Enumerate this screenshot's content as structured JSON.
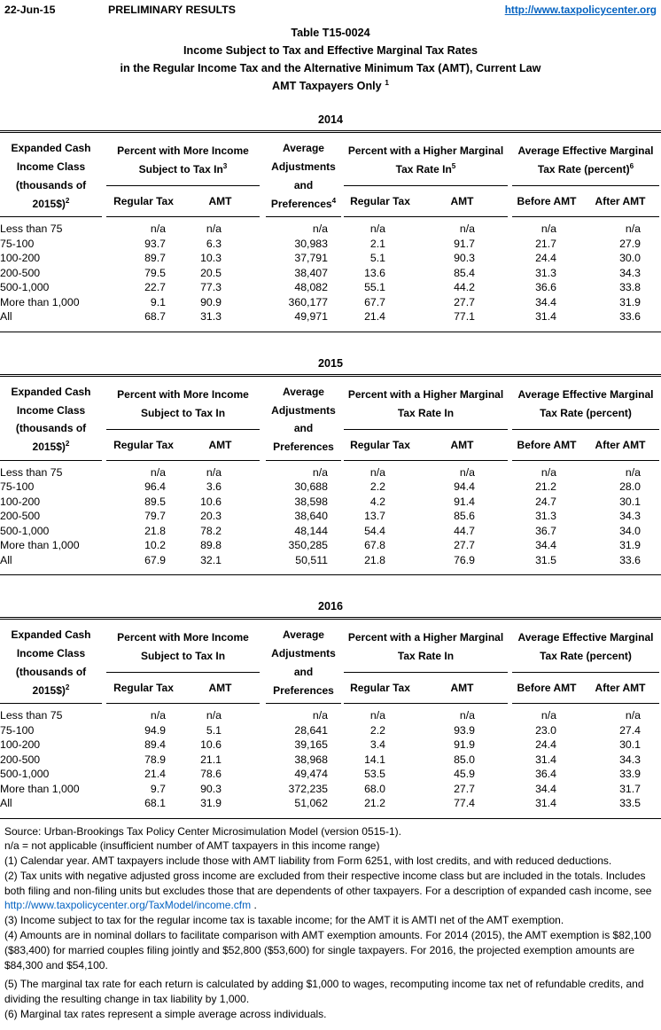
{
  "colors": {
    "link": "#0563C1",
    "text": "#000000",
    "rule": "#000000"
  },
  "header": {
    "date": "22-Jun-15",
    "status": "PRELIMINARY RESULTS",
    "url": "http://www.taxpolicycenter.org"
  },
  "title": {
    "line1": "Table T15-0024",
    "line2": "Income Subject to Tax and Effective Marginal Tax Rates",
    "line3": "in the Regular Income Tax and the Alternative Minimum Tax (AMT), Current Law",
    "line4": "AMT Taxpayers Only ",
    "line4_sup": "1"
  },
  "tables": [
    {
      "year": "2014",
      "income_class_header": {
        "lines": [
          "Expanded Cash",
          "Income Class",
          "(thousands of"
        ],
        "last": "2015$)",
        "sup": "2"
      },
      "group_subject": {
        "line1": "Percent with More Income",
        "line2": "Subject to Tax In",
        "sup": "3"
      },
      "avg_header": {
        "lines": [
          "Average",
          "Adjustments",
          "and"
        ],
        "last": "Preferences",
        "sup": "4"
      },
      "group_higher": {
        "line1": "Percent with a Higher Marginal",
        "line2": "Tax Rate In",
        "sup": "5"
      },
      "group_effective": {
        "line1": "Average Effective Marginal",
        "line2": "Tax Rate (percent)",
        "sup": "6"
      },
      "sub_headers": [
        "Regular Tax",
        "AMT",
        "Regular Tax",
        "AMT",
        "Before AMT",
        "After AMT"
      ],
      "rows": [
        [
          "Less than 75",
          "n/a",
          "n/a",
          "n/a",
          "n/a",
          "n/a",
          "n/a",
          "n/a"
        ],
        [
          "75-100",
          "93.7",
          "6.3",
          "30,983",
          "2.1",
          "91.7",
          "21.7",
          "27.9"
        ],
        [
          "100-200",
          "89.7",
          "10.3",
          "37,791",
          "5.1",
          "90.3",
          "24.4",
          "30.0"
        ],
        [
          "200-500",
          "79.5",
          "20.5",
          "38,407",
          "13.6",
          "85.4",
          "31.3",
          "34.3"
        ],
        [
          "500-1,000",
          "22.7",
          "77.3",
          "48,082",
          "55.1",
          "44.2",
          "36.6",
          "33.8"
        ],
        [
          "More than 1,000",
          "9.1",
          "90.9",
          "360,177",
          "67.7",
          "27.7",
          "34.4",
          "31.9"
        ],
        [
          "All",
          "68.7",
          "31.3",
          "49,971",
          "21.4",
          "77.1",
          "31.4",
          "33.6"
        ]
      ]
    },
    {
      "year": "2015",
      "income_class_header": {
        "lines": [
          "Expanded Cash",
          "Income Class",
          "(thousands of"
        ],
        "last": "2015$)",
        "sup": "2"
      },
      "group_subject": {
        "line1": "Percent with More Income",
        "line2": "Subject to Tax In",
        "sup": ""
      },
      "avg_header": {
        "lines": [
          "Average",
          "Adjustments",
          "and"
        ],
        "last": "Preferences",
        "sup": ""
      },
      "group_higher": {
        "line1": "Percent with a Higher Marginal",
        "line2": "Tax Rate In",
        "sup": ""
      },
      "group_effective": {
        "line1": "Average Effective Marginal",
        "line2": "Tax Rate (percent)",
        "sup": ""
      },
      "sub_headers": [
        "Regular Tax",
        "AMT",
        "Regular Tax",
        "AMT",
        "Before AMT",
        "After AMT"
      ],
      "rows": [
        [
          "Less than 75",
          "n/a",
          "n/a",
          "n/a",
          "n/a",
          "n/a",
          "n/a",
          "n/a"
        ],
        [
          "75-100",
          "96.4",
          "3.6",
          "30,688",
          "2.2",
          "94.4",
          "21.2",
          "28.0"
        ],
        [
          "100-200",
          "89.5",
          "10.6",
          "38,598",
          "4.2",
          "91.4",
          "24.7",
          "30.1"
        ],
        [
          "200-500",
          "79.7",
          "20.3",
          "38,640",
          "13.7",
          "85.6",
          "31.3",
          "34.3"
        ],
        [
          "500-1,000",
          "21.8",
          "78.2",
          "48,144",
          "54.4",
          "44.7",
          "36.7",
          "34.0"
        ],
        [
          "More than 1,000",
          "10.2",
          "89.8",
          "350,285",
          "67.8",
          "27.7",
          "34.4",
          "31.9"
        ],
        [
          "All",
          "67.9",
          "32.1",
          "50,511",
          "21.8",
          "76.9",
          "31.5",
          "33.6"
        ]
      ]
    },
    {
      "year": "2016",
      "income_class_header": {
        "lines": [
          "Expanded Cash",
          "Income Class",
          "(thousands of"
        ],
        "last": "2015$)",
        "sup": "2"
      },
      "group_subject": {
        "line1": "Percent with More Income",
        "line2": "Subject to Tax In",
        "sup": ""
      },
      "avg_header": {
        "lines": [
          "Average",
          "Adjustments",
          "and"
        ],
        "last": "Preferences",
        "sup": ""
      },
      "group_higher": {
        "line1": "Percent with a Higher Marginal",
        "line2": "Tax Rate In",
        "sup": ""
      },
      "group_effective": {
        "line1": "Average Effective Marginal",
        "line2": "Tax Rate (percent)",
        "sup": ""
      },
      "sub_headers": [
        "Regular Tax",
        "AMT",
        "Regular Tax",
        "AMT",
        "Before AMT",
        "After AMT"
      ],
      "rows": [
        [
          "Less than 75",
          "n/a",
          "n/a",
          "n/a",
          "n/a",
          "n/a",
          "n/a",
          "n/a"
        ],
        [
          "75-100",
          "94.9",
          "5.1",
          "28,641",
          "2.2",
          "93.9",
          "23.0",
          "27.4"
        ],
        [
          "100-200",
          "89.4",
          "10.6",
          "39,165",
          "3.4",
          "91.9",
          "24.4",
          "30.1"
        ],
        [
          "200-500",
          "78.9",
          "21.1",
          "38,968",
          "14.1",
          "85.0",
          "31.4",
          "34.3"
        ],
        [
          "500-1,000",
          "21.4",
          "78.6",
          "49,474",
          "53.5",
          "45.9",
          "36.4",
          "33.9"
        ],
        [
          "More than 1,000",
          "9.7",
          "90.3",
          "372,235",
          "68.0",
          "27.7",
          "34.4",
          "31.7"
        ],
        [
          "All",
          "68.1",
          "31.9",
          "51,062",
          "21.2",
          "77.4",
          "31.4",
          "33.5"
        ]
      ]
    }
  ],
  "footnotes": {
    "items": [
      {
        "text": "Source: Urban-Brookings Tax Policy Center Microsimulation Model (version 0515-1).",
        "gap_before": false
      },
      {
        "text": "n/a = not applicable (insufficient number of AMT taxpayers in this income range)",
        "gap_before": false
      },
      {
        "text": "(1) Calendar year. AMT taxpayers include those with AMT liability from Form 6251, with lost credits, and with reduced deductions.",
        "gap_before": false
      },
      {
        "text_before": "(2) Tax units with negative adjusted gross income are excluded from their respective income class but are included in the totals. Includes both filing and non-filing units but excludes those that are dependents of other taxpayers. For a description of expanded cash income, see ",
        "link": "http://www.taxpolicycenter.org/TaxModel/income.cfm",
        "text_after": " .",
        "gap_before": false
      },
      {
        "text": "(3) Income subject to tax for the regular income tax is taxable income; for the AMT it is AMTI net of the AMT exemption.",
        "gap_before": false
      },
      {
        "text": "(4) Amounts are in nominal dollars to facilitate comparison with AMT exemption amounts. For 2014 (2015), the AMT exemption is $82,100 ($83,400) for married couples filing jointly and $52,800 ($53,600) for single taxpayers. For 2016, the projected exemption amounts are $84,300 and $54,100.",
        "gap_before": false
      },
      {
        "text": "(5) The marginal tax rate for each return is calculated by adding $1,000 to wages, recomputing income tax net of refundable credits, and dividing the resulting change in tax liability by 1,000.",
        "gap_before": true
      },
      {
        "text": "(6) Marginal tax rates represent a simple average across individuals.",
        "gap_before": false
      }
    ]
  }
}
